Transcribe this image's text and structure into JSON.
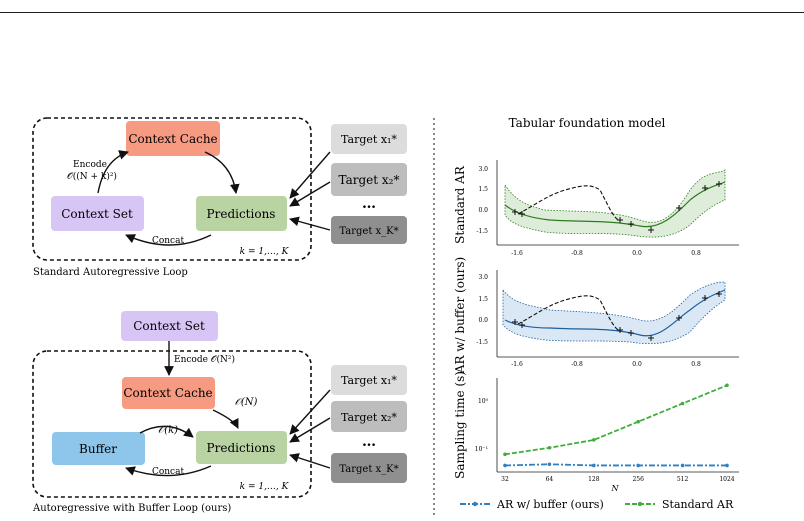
{
  "left": {
    "top_loop": {
      "context_cache": "Context Cache",
      "context_set": "Context Set",
      "predictions": "Predictions",
      "encode_label": "Encode",
      "encode_cost": "𝒪((N + k)²)",
      "concat": "Concat",
      "k_range": "k = 1,…, K",
      "caption": "Standard Autoregressive Loop",
      "targets": [
        "Target x₁*",
        "Target x₂*",
        "…",
        "Target x_K*"
      ]
    },
    "bottom_loop": {
      "context_set": "Context Set",
      "encode": "Encode 𝒪(N²)",
      "context_cache": "Context Cache",
      "cache_cost": "𝒪(N)",
      "buffer": "Buffer",
      "buffer_cost": "𝒪(k)",
      "predictions": "Predictions",
      "concat": "Concat",
      "k_range": "k = 1,…, K",
      "caption": "Autoregressive with Buffer Loop (ours)",
      "targets": [
        "Target x₁*",
        "Target x₂*",
        "…",
        "Target x_K*"
      ]
    }
  },
  "right": {
    "title": "Tabular foundation model",
    "panel1": {
      "ylabel": "Standard AR",
      "yticks": [
        "3.0",
        "1.5",
        "0.0",
        "-1.5"
      ],
      "xticks": [
        "-1.6",
        "-0.8",
        "0.0",
        "0.8"
      ],
      "color": "#4a9a2a"
    },
    "panel2": {
      "ylabel": "AR w/ buffer (ours)",
      "yticks": [
        "3.0",
        "1.5",
        "0.0",
        "-1.5"
      ],
      "xticks": [
        "-1.6",
        "-0.8",
        "0.0",
        "0.8"
      ],
      "color": "#2f7fc1"
    },
    "panel3": {
      "ylabel": "Sampling time (s)",
      "xlabel": "N",
      "yticks": [
        "10⁰",
        "10⁻¹"
      ],
      "chart_data": {
        "type": "line",
        "x": [
          32,
          64,
          128,
          256,
          512,
          1024
        ],
        "xticks": [
          "32",
          "64",
          "128",
          "256",
          "512",
          "1024"
        ],
        "yscale": "log",
        "series": [
          {
            "name": "AR w/ buffer (ours)",
            "values": [
              0.055,
              0.058,
              0.055,
              0.055,
              0.055,
              0.055
            ],
            "color": "#2f7fc1"
          },
          {
            "name": "Standard AR",
            "values": [
              0.09,
              0.12,
              0.17,
              0.38,
              0.85,
              1.9
            ],
            "color": "#3fae3f"
          }
        ]
      }
    },
    "legend": [
      "AR w/ buffer (ours)",
      "Standard AR"
    ]
  }
}
